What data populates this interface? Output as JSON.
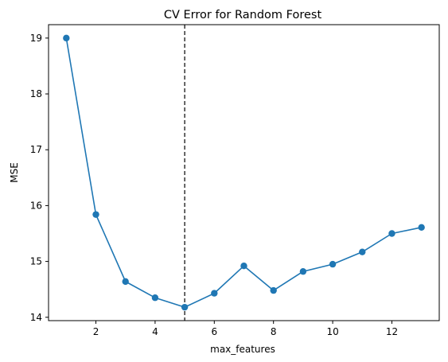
{
  "chart_data": {
    "type": "line",
    "title": "CV Error for Random Forest",
    "xlabel": "max_features",
    "ylabel": "MSE",
    "x": [
      1,
      2,
      3,
      4,
      5,
      6,
      7,
      8,
      9,
      10,
      11,
      12,
      13
    ],
    "series": [
      {
        "values": [
          19.0,
          15.84,
          14.64,
          14.35,
          14.18,
          14.43,
          14.92,
          14.48,
          14.82,
          14.95,
          15.17,
          15.5,
          15.61
        ],
        "color": "#1f77b4",
        "marker": "circle"
      }
    ],
    "xlim": [
      0.4,
      13.6
    ],
    "ylim": [
      13.94,
      19.24
    ],
    "xticks": [
      2,
      4,
      6,
      8,
      10,
      12
    ],
    "yticks": [
      14,
      15,
      16,
      17,
      18,
      19
    ],
    "grid": false,
    "reference_line": {
      "axis": "x",
      "value": 5,
      "style": "dashed",
      "color": "#000000"
    }
  }
}
